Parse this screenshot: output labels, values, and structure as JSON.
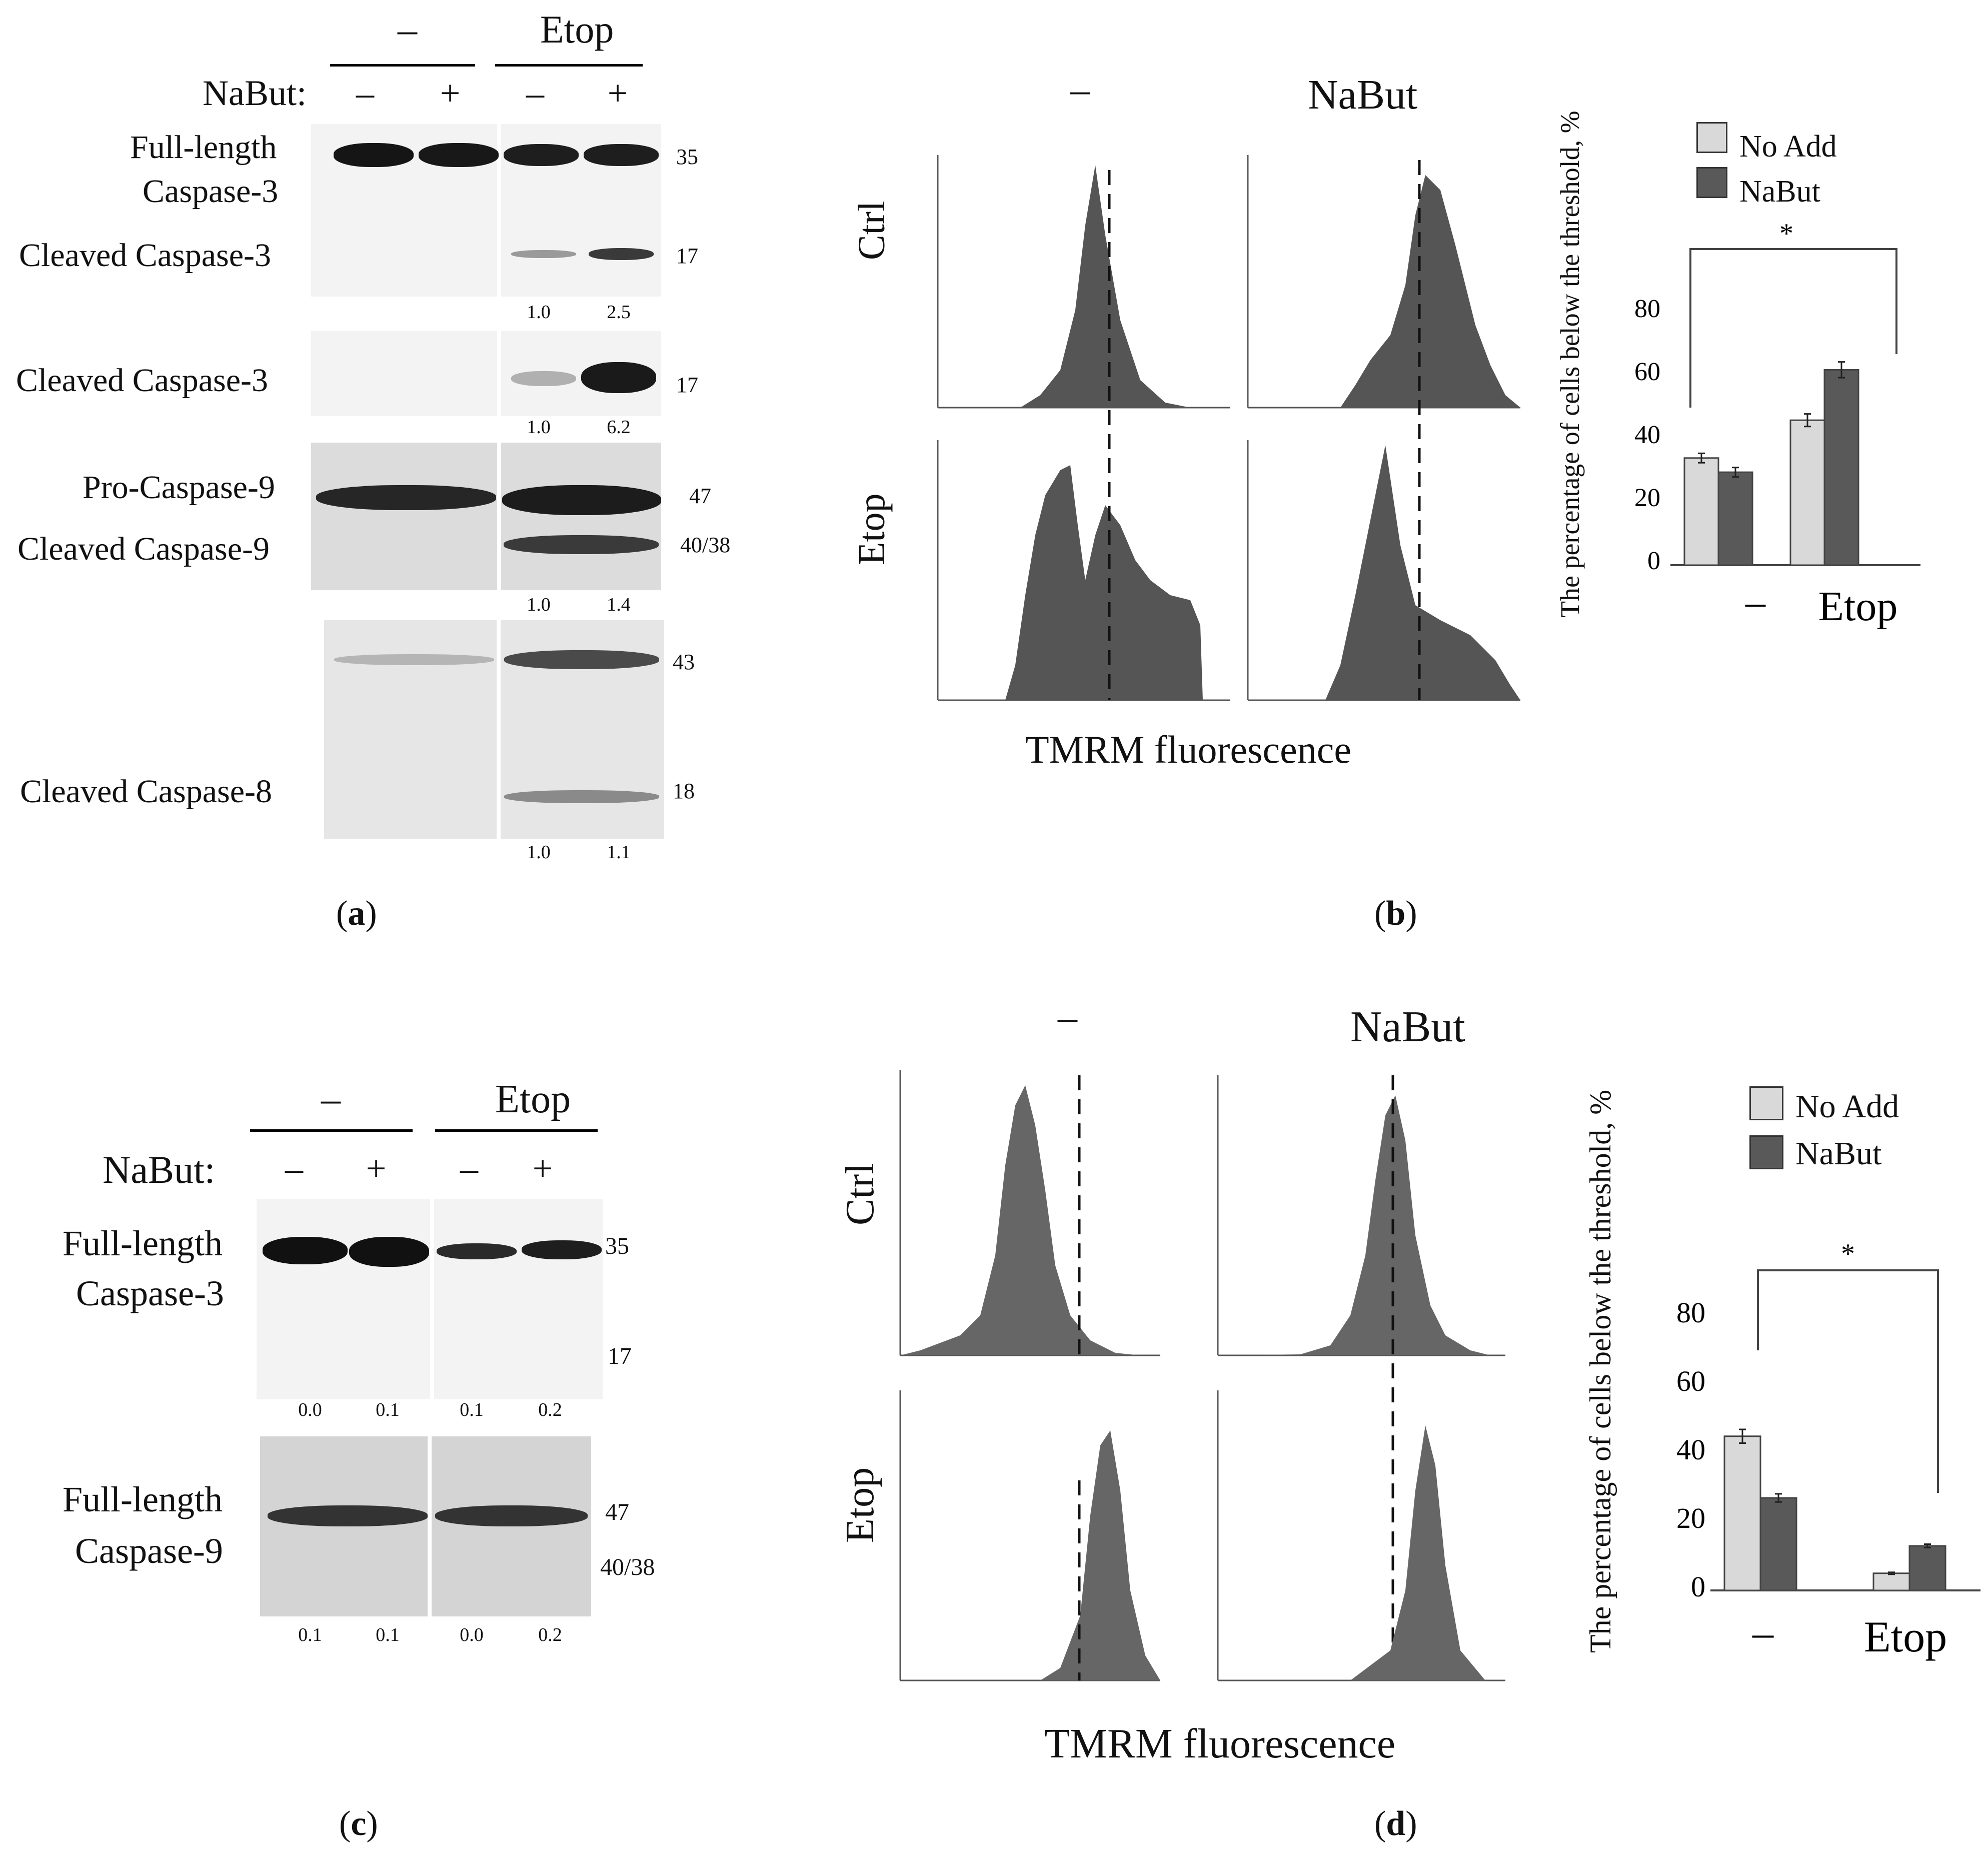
{
  "panels": {
    "a": {
      "label_text": "a",
      "group_minus": "–",
      "group_etop": "Etop",
      "nabut_label": "NaBut:",
      "lanes": [
        "–",
        "+",
        "–",
        "+"
      ],
      "rows": [
        {
          "labels": [
            "Full-length",
            "Caspase-3",
            "Cleaved Caspase-3"
          ],
          "mw": [
            "35",
            "17"
          ],
          "quant": [
            "1.0",
            "2.5"
          ]
        },
        {
          "labels": [
            "Cleaved Caspase-3"
          ],
          "mw": [
            "17"
          ],
          "quant": [
            "1.0",
            "6.2"
          ]
        },
        {
          "labels": [
            "Pro-Caspase-9",
            "Cleaved Caspase-9"
          ],
          "mw": [
            "47",
            "40/38"
          ],
          "quant": [
            "1.0",
            "1.4"
          ]
        },
        {
          "labels": [
            "Cleaved Caspase-8"
          ],
          "mw": [
            "43",
            "18"
          ],
          "quant": [
            "1.0",
            "1.1"
          ]
        }
      ]
    },
    "b": {
      "label_text": "b",
      "col_minus": "–",
      "col_nabut": "NaBut",
      "row_ctrl": "Ctrl",
      "row_etop": "Etop",
      "xlabel": "TMRM fluorescence"
    },
    "c": {
      "label_text": "c",
      "group_minus": "–",
      "group_etop": "Etop",
      "nabut_label": "NaBut:",
      "lanes": [
        "–",
        "+",
        "–",
        "+"
      ],
      "rows": [
        {
          "labels": [
            "Full-length",
            "Caspase-3"
          ],
          "mw": [
            "35",
            "17"
          ],
          "quant": [
            "0.0",
            "0.1",
            "0.1",
            "0.2"
          ]
        },
        {
          "labels": [
            "Full-length",
            "Caspase-9"
          ],
          "mw": [
            "47",
            "40/38"
          ],
          "quant": [
            "0.1",
            "0.1",
            "0.0",
            "0.2"
          ]
        }
      ]
    },
    "d": {
      "label_text": "d",
      "col_minus": "–",
      "col_nabut": "NaBut",
      "row_ctrl": "Ctrl",
      "row_etop": "Etop",
      "xlabel": "TMRM fluorescence"
    }
  },
  "chart_data": [
    {
      "type": "bar",
      "panel": "b",
      "categories": [
        "–",
        "Etop"
      ],
      "series": [
        {
          "name": "No Add",
          "values": [
            34,
            46
          ],
          "errors": [
            1.5,
            2
          ],
          "color": "#d9d9d9"
        },
        {
          "name": "NaBut",
          "values": [
            29.5,
            62
          ],
          "errors": [
            1.5,
            2.5
          ],
          "color": "#595959"
        }
      ],
      "ylabel": "The percentage of cells below the threshold, %",
      "yticks": [
        "0",
        "20",
        "40",
        "60",
        "80"
      ],
      "ylim": [
        0,
        80
      ],
      "legend_position": "top-left",
      "significance": "*"
    },
    {
      "type": "bar",
      "panel": "d",
      "categories": [
        "–",
        "Etop"
      ],
      "series": [
        {
          "name": "No Add",
          "values": [
            45,
            5
          ],
          "errors": [
            2,
            0.3
          ],
          "color": "#d9d9d9"
        },
        {
          "name": "NaBut",
          "values": [
            27,
            13
          ],
          "errors": [
            1.2,
            0.5
          ],
          "color": "#595959"
        }
      ],
      "ylabel": "The percentage of cells below the threshold, %",
      "yticks": [
        "0",
        "20",
        "40",
        "60",
        "80"
      ],
      "ylim": [
        0,
        80
      ],
      "legend_position": "top-left",
      "significance": "*"
    }
  ]
}
